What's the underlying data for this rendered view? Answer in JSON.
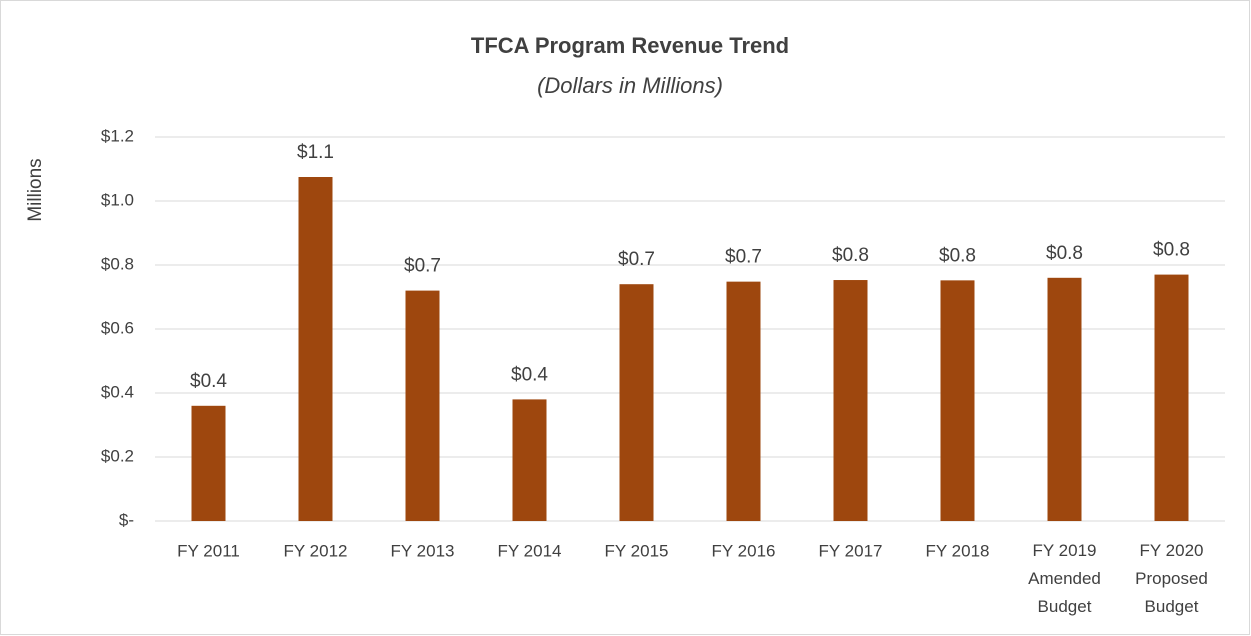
{
  "chart_data": {
    "type": "bar",
    "title": "TFCA Program Revenue Trend",
    "subtitle": "(Dollars in Millions)",
    "y_label": "Millions",
    "categories": [
      "FY 2011",
      "FY 2012",
      "FY 2013",
      "FY 2014",
      "FY 2015",
      "FY 2016",
      "FY 2017",
      "FY 2018",
      "FY 2019\nAmended\nBudget",
      "FY 2020\nProposed\nBudget"
    ],
    "values": [
      0.36,
      1.075,
      0.72,
      0.38,
      0.74,
      0.748,
      0.753,
      0.752,
      0.76,
      0.77
    ],
    "value_labels": [
      "$0.4",
      "$1.1",
      "$0.7",
      "$0.4",
      "$0.7",
      "$0.7",
      "$0.8",
      "$0.8",
      "$0.8",
      "$0.8"
    ],
    "color": "#9e470e",
    "ylim": [
      0,
      1.2
    ],
    "yticks": [
      {
        "value": 0,
        "label": "$-"
      },
      {
        "value": 0.2,
        "label": "$0.2"
      },
      {
        "value": 0.4,
        "label": "$0.4"
      },
      {
        "value": 0.6,
        "label": "$0.6"
      },
      {
        "value": 0.8,
        "label": "$0.8"
      },
      {
        "value": 1.0,
        "label": "$1.0"
      },
      {
        "value": 1.2,
        "label": "$1.2"
      }
    ],
    "grid": true
  }
}
